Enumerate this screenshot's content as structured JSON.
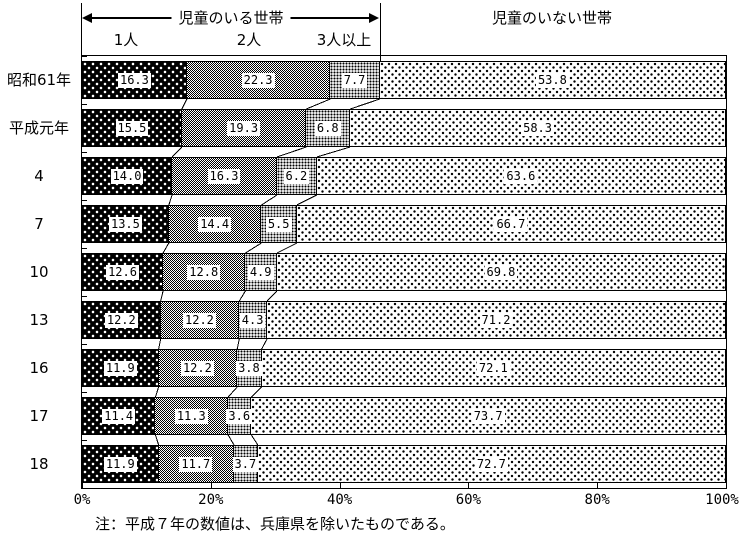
{
  "header": {
    "with_children_label": "児童のいる世帯",
    "without_children_label": "児童のいない世帯",
    "sub_labels": [
      "1人",
      "2人",
      "3人以上"
    ]
  },
  "note": "注：平成７年の数値は、兵庫県を除いたものである。",
  "colors": {
    "foreground": "#000000",
    "background": "#ffffff"
  },
  "chart_data": {
    "type": "bar",
    "stacked": true,
    "orientation": "horizontal",
    "value_unit": "%",
    "xlim": [
      0,
      100
    ],
    "x_tick_labels": [
      "0%",
      "20%",
      "40%",
      "60%",
      "80%",
      "100%"
    ],
    "grid": false,
    "legend_position": "top",
    "categories": [
      "昭和61年",
      "平成元年",
      "4",
      "7",
      "10",
      "13",
      "16",
      "17",
      "18"
    ],
    "series": [
      {
        "name": "児童のいる世帯（1人）",
        "pattern": "white-dots-on-black",
        "values": [
          16.3,
          15.5,
          14.0,
          13.5,
          12.6,
          12.2,
          11.9,
          11.4,
          11.9
        ]
      },
      {
        "name": "児童のいる世帯（2人）",
        "pattern": "gray-checker",
        "values": [
          22.3,
          19.3,
          16.3,
          14.4,
          12.8,
          12.2,
          12.2,
          11.3,
          11.7
        ]
      },
      {
        "name": "児童のいる世帯（3人以上）",
        "pattern": "dense-black-dots-on-white",
        "values": [
          7.7,
          6.8,
          6.2,
          5.5,
          4.9,
          4.3,
          3.8,
          3.6,
          3.7
        ]
      },
      {
        "name": "児童のいない世帯",
        "pattern": "sparse-black-dots-on-white",
        "values": [
          53.8,
          58.3,
          63.6,
          66.7,
          69.8,
          71.2,
          72.1,
          73.7,
          72.7
        ]
      }
    ]
  }
}
